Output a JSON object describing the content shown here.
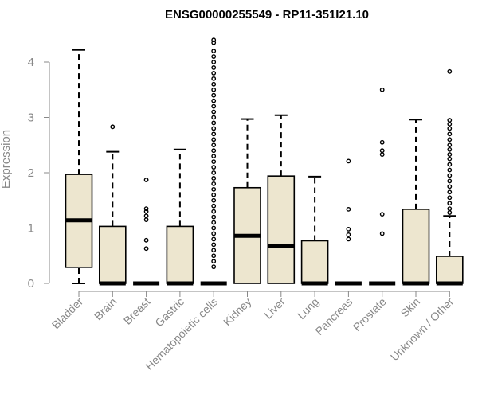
{
  "chart_data": {
    "type": "boxplot",
    "title": "ENSG00000255549 - RP11-351I21.10",
    "ylabel": "Expression",
    "ylim": [
      0,
      4.5
    ],
    "yticks": [
      0,
      1,
      2,
      3,
      4
    ],
    "box_color": "#ede6cf",
    "categories": [
      {
        "name": "Bladder",
        "whisker_low": 0,
        "q1": 0.29,
        "median": 1.14,
        "q3": 1.97,
        "whisker_high": 4.22,
        "outliers": []
      },
      {
        "name": "Brain",
        "whisker_low": 0,
        "q1": 0,
        "median": 0,
        "q3": 1.03,
        "whisker_high": 2.38,
        "outliers": [
          2.83
        ]
      },
      {
        "name": "Breast",
        "whisker_low": 0,
        "q1": 0,
        "median": 0,
        "q3": 0,
        "whisker_high": 0,
        "outliers": [
          1.87,
          1.35,
          1.3,
          1.22,
          1.15,
          0.78,
          0.63
        ]
      },
      {
        "name": "Gastric",
        "whisker_low": 0,
        "q1": 0,
        "median": 0,
        "q3": 1.03,
        "whisker_high": 2.42,
        "outliers": []
      },
      {
        "name": "Hematopoietic cells",
        "whisker_low": 0,
        "q1": 0,
        "median": 0,
        "q3": 0,
        "whisker_high": 0,
        "outliers": [
          4.4,
          4.35,
          4.2,
          4.1,
          4.0,
          3.9,
          3.8,
          3.7,
          3.6,
          3.5,
          3.4,
          3.3,
          3.2,
          3.1,
          3.0,
          2.9,
          2.8,
          2.7,
          2.6,
          2.5,
          2.4,
          2.3,
          2.2,
          2.1,
          2.0,
          1.9,
          1.8,
          1.7,
          1.6,
          1.5,
          1.4,
          1.3,
          1.2,
          1.1,
          1.0,
          0.9,
          0.8,
          0.7,
          0.6,
          0.5,
          0.4,
          0.3
        ]
      },
      {
        "name": "Kidney",
        "whisker_low": 0,
        "q1": 0,
        "median": 0.86,
        "q3": 1.73,
        "whisker_high": 2.97,
        "outliers": []
      },
      {
        "name": "Liver",
        "whisker_low": 0,
        "q1": 0,
        "median": 0.68,
        "q3": 1.94,
        "whisker_high": 3.04,
        "outliers": []
      },
      {
        "name": "Lung",
        "whisker_low": 0,
        "q1": 0,
        "median": 0,
        "q3": 0.77,
        "whisker_high": 1.93,
        "outliers": []
      },
      {
        "name": "Pancreas",
        "whisker_low": 0,
        "q1": 0,
        "median": 0,
        "q3": 0,
        "whisker_high": 0,
        "outliers": [
          2.21,
          1.34,
          0.98,
          0.88,
          0.8
        ]
      },
      {
        "name": "Prostate",
        "whisker_low": 0,
        "q1": 0,
        "median": 0,
        "q3": 0,
        "whisker_high": 0,
        "outliers": [
          3.5,
          2.55,
          2.4,
          2.33,
          1.25,
          0.9
        ]
      },
      {
        "name": "Skin",
        "whisker_low": 0,
        "q1": 0,
        "median": 0,
        "q3": 1.34,
        "whisker_high": 2.96,
        "outliers": []
      },
      {
        "name": "Unknown / Other",
        "whisker_low": 0,
        "q1": 0,
        "median": 0,
        "q3": 0.49,
        "whisker_high": 1.22,
        "outliers": [
          3.83,
          2.95,
          2.88,
          2.8,
          2.7,
          2.6,
          2.5,
          2.42,
          2.33,
          2.25,
          2.15,
          2.05,
          1.95,
          1.85,
          1.75,
          1.65,
          1.55,
          1.45,
          1.35,
          1.28
        ]
      }
    ]
  }
}
